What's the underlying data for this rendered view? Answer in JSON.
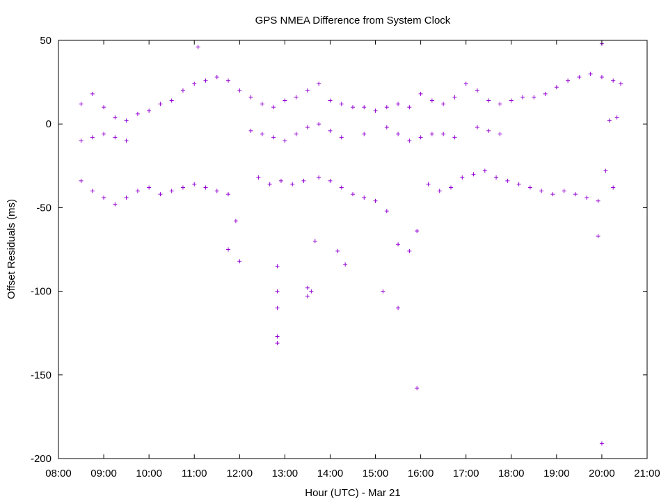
{
  "chart_data": {
    "type": "scatter",
    "title": "GPS NMEA Difference from System Clock",
    "xlabel": "Hour (UTC) - Mar 21",
    "ylabel": "Offset Residuals (ms)",
    "xlim": [
      "08:00",
      "21:00"
    ],
    "ylim": [
      -200,
      50
    ],
    "x_ticks": [
      "08:00",
      "09:00",
      "10:00",
      "11:00",
      "12:00",
      "13:00",
      "14:00",
      "15:00",
      "16:00",
      "17:00",
      "18:00",
      "19:00",
      "20:00",
      "21:00"
    ],
    "y_ticks": [
      "50",
      "0",
      "-50",
      "-100",
      "-150",
      "-200"
    ],
    "grid": false,
    "legend": "none",
    "marker": "+",
    "marker_color": "#9400d3",
    "series": [
      {
        "values": [
          [
            "08:30",
            12
          ],
          [
            "08:45",
            18
          ],
          [
            "09:00",
            10
          ],
          [
            "09:15",
            4
          ],
          [
            "09:30",
            2
          ],
          [
            "09:45",
            6
          ],
          [
            "10:00",
            8
          ],
          [
            "10:15",
            12
          ],
          [
            "10:30",
            14
          ],
          [
            "10:45",
            20
          ],
          [
            "11:00",
            24
          ],
          [
            "11:15",
            26
          ],
          [
            "11:30",
            28
          ],
          [
            "11:45",
            26
          ],
          [
            "12:00",
            20
          ],
          [
            "12:15",
            16
          ],
          [
            "12:30",
            12
          ],
          [
            "12:45",
            10
          ],
          [
            "13:00",
            14
          ],
          [
            "13:15",
            16
          ],
          [
            "13:30",
            20
          ],
          [
            "13:45",
            24
          ],
          [
            "14:00",
            14
          ],
          [
            "14:15",
            12
          ],
          [
            "14:30",
            10
          ],
          [
            "14:45",
            10
          ],
          [
            "15:00",
            8
          ],
          [
            "15:15",
            10
          ],
          [
            "15:30",
            12
          ],
          [
            "15:45",
            10
          ],
          [
            "16:00",
            18
          ],
          [
            "16:15",
            14
          ],
          [
            "16:30",
            12
          ],
          [
            "16:45",
            16
          ],
          [
            "17:00",
            24
          ],
          [
            "17:15",
            20
          ],
          [
            "17:30",
            14
          ],
          [
            "17:45",
            12
          ],
          [
            "18:00",
            14
          ],
          [
            "18:15",
            16
          ],
          [
            "18:30",
            16
          ],
          [
            "18:45",
            18
          ],
          [
            "19:00",
            22
          ],
          [
            "19:15",
            26
          ],
          [
            "19:30",
            28
          ],
          [
            "19:45",
            30
          ],
          [
            "20:00",
            28
          ],
          [
            "20:15",
            26
          ],
          [
            "20:25",
            24
          ],
          [
            "08:30",
            -10
          ],
          [
            "08:45",
            -8
          ],
          [
            "09:00",
            -6
          ],
          [
            "09:15",
            -8
          ],
          [
            "09:30",
            -10
          ],
          [
            "12:15",
            -4
          ],
          [
            "12:30",
            -6
          ],
          [
            "12:45",
            -8
          ],
          [
            "13:00",
            -10
          ],
          [
            "13:15",
            -6
          ],
          [
            "13:30",
            -2
          ],
          [
            "13:45",
            0
          ],
          [
            "14:00",
            -4
          ],
          [
            "14:15",
            -8
          ],
          [
            "14:45",
            -6
          ],
          [
            "15:15",
            -2
          ],
          [
            "15:30",
            -6
          ],
          [
            "15:45",
            -10
          ],
          [
            "16:00",
            -8
          ],
          [
            "16:15",
            -6
          ],
          [
            "16:30",
            -6
          ],
          [
            "16:45",
            -8
          ],
          [
            "17:15",
            -2
          ],
          [
            "17:30",
            -4
          ],
          [
            "17:45",
            -6
          ],
          [
            "20:10",
            2
          ],
          [
            "20:20",
            4
          ],
          [
            "08:30",
            -34
          ],
          [
            "08:45",
            -40
          ],
          [
            "09:00",
            -44
          ],
          [
            "09:15",
            -48
          ],
          [
            "09:30",
            -44
          ],
          [
            "09:45",
            -40
          ],
          [
            "10:00",
            -38
          ],
          [
            "10:15",
            -42
          ],
          [
            "10:30",
            -40
          ],
          [
            "10:45",
            -38
          ],
          [
            "11:00",
            -36
          ],
          [
            "11:15",
            -38
          ],
          [
            "11:30",
            -40
          ],
          [
            "11:45",
            -42
          ],
          [
            "11:55",
            -58
          ],
          [
            "12:25",
            -32
          ],
          [
            "12:40",
            -36
          ],
          [
            "12:55",
            -34
          ],
          [
            "13:10",
            -36
          ],
          [
            "13:25",
            -34
          ],
          [
            "13:45",
            -32
          ],
          [
            "14:00",
            -34
          ],
          [
            "14:15",
            -38
          ],
          [
            "14:30",
            -42
          ],
          [
            "14:45",
            -44
          ],
          [
            "15:00",
            -46
          ],
          [
            "15:15",
            -52
          ],
          [
            "15:30",
            -72
          ],
          [
            "15:45",
            -76
          ],
          [
            "15:55",
            -64
          ],
          [
            "16:10",
            -36
          ],
          [
            "16:25",
            -40
          ],
          [
            "16:40",
            -38
          ],
          [
            "16:55",
            -32
          ],
          [
            "17:10",
            -30
          ],
          [
            "17:25",
            -28
          ],
          [
            "17:40",
            -32
          ],
          [
            "17:55",
            -34
          ],
          [
            "18:10",
            -36
          ],
          [
            "18:25",
            -38
          ],
          [
            "18:40",
            -40
          ],
          [
            "18:55",
            -42
          ],
          [
            "19:10",
            -40
          ],
          [
            "19:25",
            -42
          ],
          [
            "19:40",
            -44
          ],
          [
            "19:55",
            -46
          ],
          [
            "11:05",
            46
          ],
          [
            "11:45",
            -75
          ],
          [
            "12:00",
            -82
          ],
          [
            "12:50",
            -85
          ],
          [
            "12:50",
            -100
          ],
          [
            "12:50",
            -110
          ],
          [
            "12:50",
            -127
          ],
          [
            "12:50",
            -131
          ],
          [
            "13:30",
            -98
          ],
          [
            "13:30",
            -103
          ],
          [
            "13:35",
            -100
          ],
          [
            "13:40",
            -70
          ],
          [
            "14:10",
            -76
          ],
          [
            "14:20",
            -84
          ],
          [
            "15:10",
            -100
          ],
          [
            "15:30",
            -110
          ],
          [
            "15:55",
            -158
          ],
          [
            "20:00",
            -191
          ],
          [
            "19:55",
            -67
          ],
          [
            "20:00",
            48
          ],
          [
            "20:05",
            -28
          ],
          [
            "20:15",
            -38
          ]
        ]
      }
    ]
  }
}
